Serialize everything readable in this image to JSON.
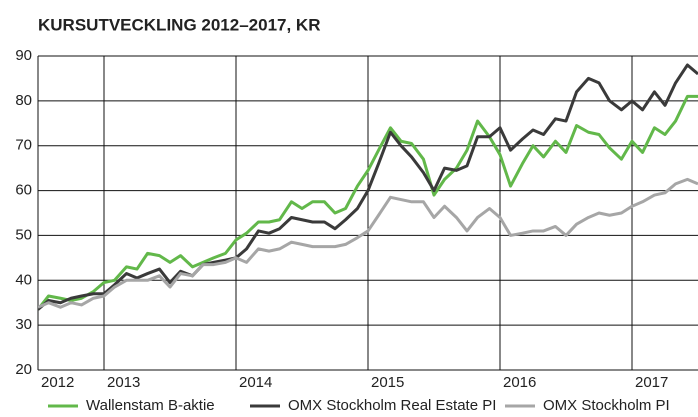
{
  "chart_data": {
    "type": "line",
    "title": "KURSUTVECKLING 2012–2017, KR",
    "x": [
      2012.5,
      2012.58,
      2012.67,
      2012.75,
      2012.83,
      2012.92,
      2013.0,
      2013.08,
      2013.17,
      2013.25,
      2013.33,
      2013.42,
      2013.5,
      2013.58,
      2013.67,
      2013.75,
      2013.83,
      2013.92,
      2014.0,
      2014.08,
      2014.17,
      2014.25,
      2014.33,
      2014.42,
      2014.5,
      2014.58,
      2014.67,
      2014.75,
      2014.83,
      2014.92,
      2015.0,
      2015.08,
      2015.17,
      2015.25,
      2015.33,
      2015.42,
      2015.5,
      2015.58,
      2015.67,
      2015.75,
      2015.83,
      2015.92,
      2016.0,
      2016.08,
      2016.17,
      2016.25,
      2016.33,
      2016.42,
      2016.5,
      2016.58,
      2016.67,
      2016.75,
      2016.83,
      2016.92,
      2017.0,
      2017.08,
      2017.17,
      2017.25,
      2017.33,
      2017.42,
      2017.5
    ],
    "series": [
      {
        "name": "Wallenstam B-aktie",
        "color": "#62b84a",
        "values": [
          33.5,
          36.5,
          36,
          35.5,
          36,
          37.5,
          39.5,
          40,
          43,
          42.5,
          46,
          45.5,
          44,
          45.5,
          43,
          44,
          45,
          46,
          49,
          50.5,
          53,
          53,
          53.5,
          57.5,
          56,
          57.5,
          57.5,
          55,
          56,
          61,
          64.5,
          69,
          74,
          71,
          70.5,
          67,
          59,
          62.5,
          65,
          69,
          75.5,
          72,
          68,
          61,
          66,
          70,
          67.5,
          71,
          68.5,
          74.5,
          73,
          72.5,
          69.5,
          67,
          71,
          68.5,
          74,
          72.5,
          75.5,
          81,
          81
        ]
      },
      {
        "name": "OMX Stockholm Real Estate PI",
        "color": "#3a3a3a",
        "values": [
          33.5,
          35.5,
          35,
          36,
          36.5,
          37,
          37,
          39,
          41.5,
          40.5,
          41.5,
          42.5,
          39.5,
          42,
          41,
          43.5,
          44,
          44.5,
          45,
          47,
          51,
          50.5,
          51.5,
          54,
          53.5,
          53,
          53,
          51.5,
          53.5,
          56,
          60,
          66,
          73,
          70,
          67.5,
          64,
          60,
          65,
          64.5,
          65.5,
          72,
          72,
          74,
          69,
          71.5,
          73.5,
          72.5,
          76,
          75.5,
          82,
          85,
          84,
          80,
          78,
          80,
          78,
          82,
          79,
          84,
          88,
          86
        ]
      },
      {
        "name": "OMX Stockholm  PI",
        "color": "#a6a6a6",
        "values": [
          34,
          35,
          34,
          35,
          34.5,
          36,
          36.5,
          38.5,
          40,
          40,
          40,
          41,
          38.5,
          41.5,
          41,
          43.5,
          43.5,
          44,
          45,
          44,
          47,
          46.5,
          47,
          48.5,
          48,
          47.5,
          47.5,
          47.5,
          48,
          49.5,
          51,
          54.5,
          58.5,
          58,
          57.5,
          57.5,
          54,
          56.5,
          54,
          51,
          54,
          56,
          54,
          50,
          50.5,
          51,
          51,
          52,
          50,
          52.5,
          54,
          55,
          54.5,
          55,
          56.5,
          57.5,
          59,
          59.5,
          61.5,
          62.5,
          61.5
        ]
      }
    ],
    "xlim": [
      2012.5,
      2017.5
    ],
    "xticks": [
      2012,
      2013,
      2014,
      2015,
      2016,
      2017
    ],
    "ylim": [
      20,
      90
    ],
    "yticks": [
      20,
      30,
      40,
      50,
      60,
      70,
      80,
      90
    ],
    "grid": true
  }
}
